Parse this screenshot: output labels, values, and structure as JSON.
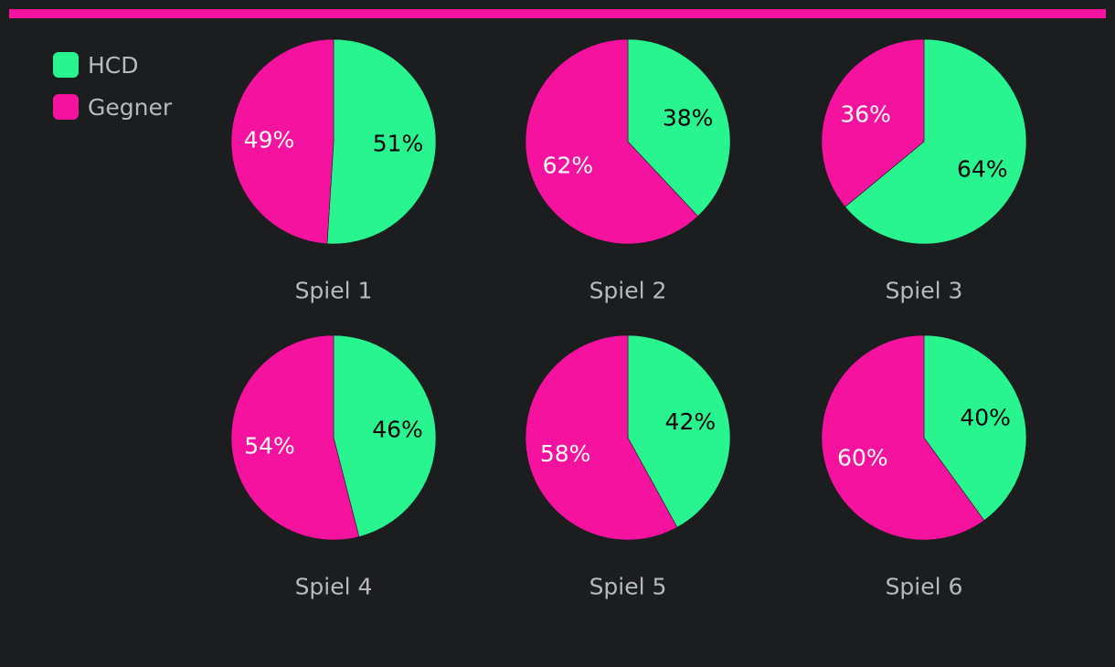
{
  "colors": {
    "hcd": "#29f590",
    "gegner": "#f5129e",
    "label_on_hcd": "#000000",
    "label_on_gegner": "#ffffff",
    "title": "#b9b9b9",
    "background": "#1c1d1f"
  },
  "legend": {
    "items": [
      {
        "label": "HCD",
        "color": "#29f590"
      },
      {
        "label": "Gegner",
        "color": "#f5129e"
      }
    ]
  },
  "chart_data": {
    "type": "pie",
    "series_names": [
      "HCD",
      "Gegner"
    ],
    "charts": [
      {
        "title": "Spiel 1",
        "values": [
          51,
          49
        ],
        "labels": [
          "51%",
          "49%"
        ]
      },
      {
        "title": "Spiel 2",
        "values": [
          38,
          62
        ],
        "labels": [
          "38%",
          "62%"
        ]
      },
      {
        "title": "Spiel 3",
        "values": [
          64,
          36
        ],
        "labels": [
          "64%",
          "36%"
        ]
      },
      {
        "title": "Spiel 4",
        "values": [
          46,
          54
        ],
        "labels": [
          "46%",
          "54%"
        ]
      },
      {
        "title": "Spiel 5",
        "values": [
          42,
          58
        ],
        "labels": [
          "42%",
          "58%"
        ]
      },
      {
        "title": "Spiel 6",
        "values": [
          40,
          60
        ],
        "labels": [
          "40%",
          "60%"
        ]
      }
    ]
  }
}
